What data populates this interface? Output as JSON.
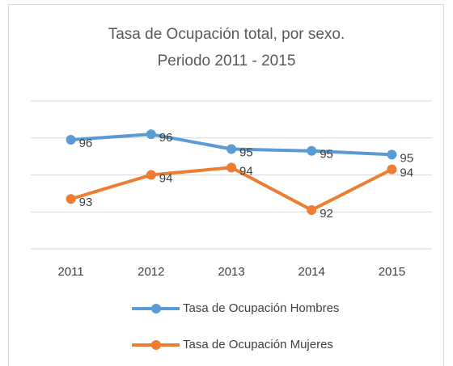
{
  "chart_data": {
    "type": "line",
    "title": "Tasa de Ocupación total, por sexo.",
    "subtitle": "Periodo 2011 - 2015",
    "categories": [
      "2011",
      "2012",
      "2013",
      "2014",
      "2015"
    ],
    "series": [
      {
        "name": "Tasa de Ocupación Hombres",
        "color": "#5b9bd5",
        "values": [
          95.9,
          96.2,
          95.4,
          95.3,
          95.1
        ],
        "value_labels": [
          "96",
          "96",
          "95",
          "95",
          "95"
        ]
      },
      {
        "name": "Tasa de Ocupación Mujeres",
        "color": "#ed7d31",
        "values": [
          92.7,
          94.0,
          94.4,
          92.1,
          94.3
        ],
        "value_labels": [
          "93",
          "94",
          "94",
          "92",
          "94"
        ]
      }
    ],
    "ylim": [
      90,
      98
    ],
    "yticks": [
      90,
      92,
      94,
      96,
      98
    ],
    "grid": true,
    "legend": "bottom"
  }
}
